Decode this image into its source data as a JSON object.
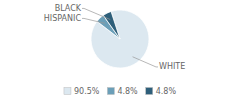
{
  "chart_data": {
    "type": "pie",
    "categories": [
      "WHITE",
      "HISPANIC",
      "BLACK"
    ],
    "values": [
      90.5,
      4.8,
      4.8
    ],
    "value_labels": [
      "90.5%",
      "4.8%",
      "4.8%"
    ],
    "colors": [
      "#dce8f0",
      "#6b9fb8",
      "#2e5f7a"
    ],
    "legend": "bottom"
  }
}
